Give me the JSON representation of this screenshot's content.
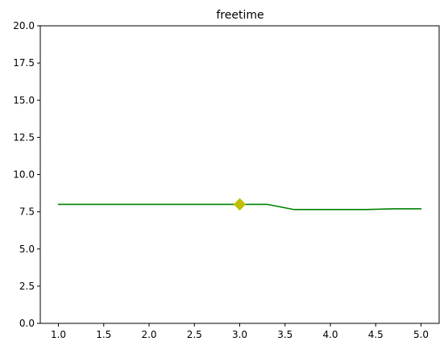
{
  "chart_data": {
    "type": "line",
    "title": "freetime",
    "xlabel": "",
    "ylabel": "",
    "xlim": [
      0.8,
      5.2
    ],
    "ylim": [
      0,
      20
    ],
    "x_ticks": [
      "1.0",
      "1.5",
      "2.0",
      "2.5",
      "3.0",
      "3.5",
      "4.0",
      "4.5",
      "5.0"
    ],
    "y_ticks": [
      "0.0",
      "2.5",
      "5.0",
      "7.5",
      "10.0",
      "12.5",
      "15.0",
      "17.5",
      "20.0"
    ],
    "grid": false,
    "series": [
      {
        "name": "",
        "color": "#008000",
        "x": [
          1.0,
          1.3,
          1.6,
          1.9,
          2.2,
          2.5,
          2.8,
          3.0,
          3.3,
          3.6,
          3.9,
          4.2,
          4.4,
          4.7,
          5.0
        ],
        "y": [
          8.0,
          8.0,
          8.0,
          8.0,
          8.0,
          8.0,
          8.0,
          8.0,
          8.0,
          7.65,
          7.65,
          7.65,
          7.65,
          7.7,
          7.7
        ]
      }
    ],
    "marker": {
      "x": 3.0,
      "y": 8.0,
      "shape": "diamond",
      "color": "#bfbf00"
    }
  }
}
